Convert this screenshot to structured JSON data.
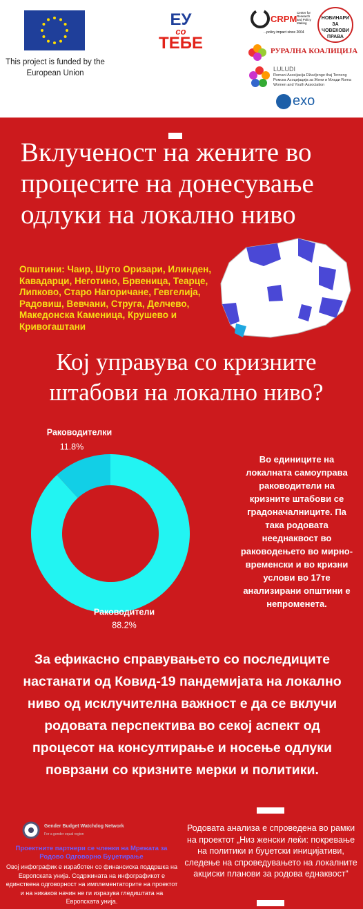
{
  "header": {
    "eu_caption": "This project is funded by the European Union",
    "eu_with_you": [
      "ЕУ",
      "со",
      "ТЕБЕ"
    ],
    "crpm": "CRPM",
    "crpm_sub": "Center for Research and Policy Making",
    "crpm_tag": "...policy impact since 2004",
    "jhr": "НОВИНАРИ ЗА ЧОВЕКОВИ ПРАВА",
    "rural": "РУРАЛНА КОАЛИЦИЈА",
    "luludi": "LULUDI",
    "luludi_sub": "Romani Asocijacija Džuvljenge thaj Terneng Ромска Асоцијација за Жени и Млади Roma Women and Youth Association",
    "exo": "exo"
  },
  "title": "Вклученост на жените во процесите на донесување одлуки на локално ниво",
  "municipalities": "Општини: Чаир, Шуто Оризари, Илинден, Кавадарци, Неготино, Брвеница, Теарце, Липково, Старо Нагоричане, Гевгелија, Радовиш, Вевчани, Струга, Делчево, Македонска Каменица, Крушево и Кривогаштани",
  "question": "Кој управува со кризните штабови на локално ниво?",
  "chart_data": {
    "type": "donut",
    "categories": [
      "Раководителки",
      "Раководители"
    ],
    "values": [
      11.8,
      88.2
    ],
    "value_labels": [
      "11.8%",
      "88.2%"
    ],
    "colors": [
      "#12cfe6",
      "#22f4f2"
    ]
  },
  "side_note": "Во единиците на локалната самоуправа раководители на кризните штабови се градоначалниците. Па така родовата нееднаквост во раководењето во мирно-временски и во кризни услови во 17те анализирани општини е непроменета.",
  "conclusion": "За ефикасно справувањето со последиците настанати од Ковид-19 пандемијата на локално ниво од исклучителна важност е да се вклучи родовата перспектива во секој аспект од процесот на консултирање и носење одлуки поврзани со кризните мерки и политики.",
  "footer": {
    "network": "Gender Budget Watchdog Network",
    "network_tag": "For a gender equal region",
    "partners": "Проектните партнери се членки на Мрежата за Родово Одговорно Буџетирање",
    "disclaimer": "Овој инфографик е изработен со финансиска поддршка на Европската унија. Содржината на инфографикот е единствена одговорност на имплементаторите на проектот и на никаков начин не ги изразува гледиштата на Европската унија.",
    "project": "Родовата анализа е спроведена во рамки на проектот „Низ женски леќи: покревање на политики и буџетски иницијативи, следење на спроведувањето на локалните акциски планови за родова еднаквост“"
  }
}
